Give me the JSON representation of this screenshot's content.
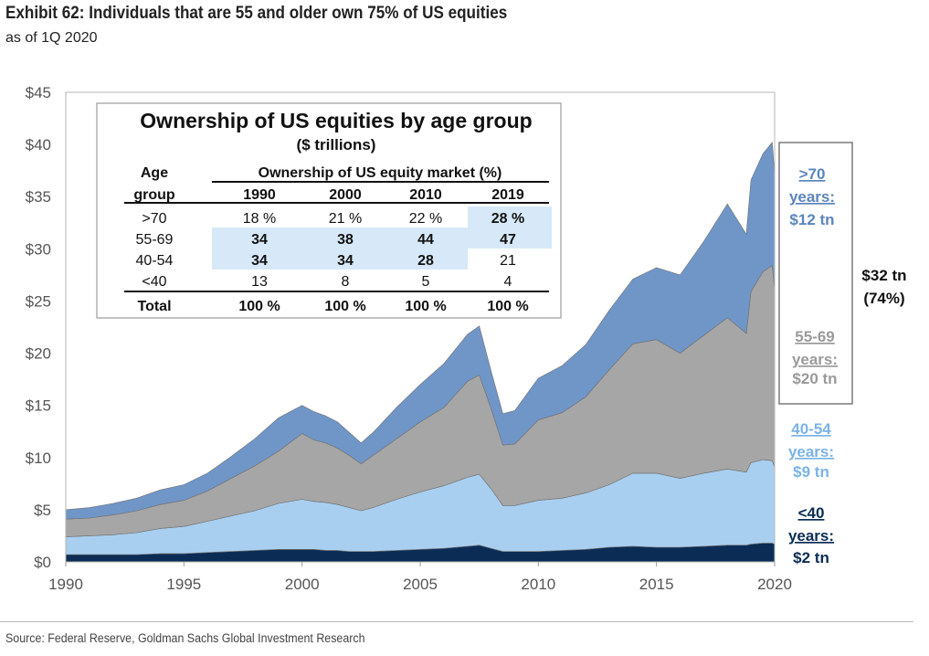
{
  "header": {
    "title": "Exhibit 62: Individuals that are 55 and older own 75% of US equities",
    "subtitle": "as of 1Q 2020"
  },
  "footer": {
    "source": "Source: Federal Reserve, Goldman Sachs Global Investment Research"
  },
  "colors": {
    "lt40": "#0b2d55",
    "a40_54": "#a9cff0",
    "a55_69": "#a6a6a6",
    "gt70": "#7096c8",
    "highlight": "#d7e9f8"
  },
  "chart_data": {
    "type": "area",
    "stacked": true,
    "ylim": [
      0,
      45
    ],
    "xlim": [
      1990,
      2020
    ],
    "y_ticks": [
      "$0",
      "$5",
      "$10",
      "$15",
      "$20",
      "$25",
      "$30",
      "$35",
      "$40",
      "$45"
    ],
    "x_ticks": [
      "1990",
      "1995",
      "2000",
      "2005",
      "2010",
      "2015",
      "2020"
    ],
    "x": [
      1990,
      1991,
      1992,
      1993,
      1994,
      1995,
      1996,
      1997,
      1998,
      1999,
      2000,
      2000.5,
      2001,
      2001.5,
      2002,
      2002.5,
      2003,
      2004,
      2005,
      2006,
      2007,
      2007.5,
      2008,
      2008.5,
      2009,
      2010,
      2011,
      2012,
      2013,
      2014,
      2015,
      2016,
      2017,
      2018,
      2018.8,
      2019,
      2019.5,
      2019.9,
      2020
    ],
    "series": [
      {
        "key": "lt40",
        "values": [
          0.7,
          0.7,
          0.7,
          0.7,
          0.8,
          0.8,
          0.9,
          1.0,
          1.1,
          1.2,
          1.2,
          1.2,
          1.1,
          1.1,
          1.0,
          1.0,
          1.0,
          1.1,
          1.2,
          1.3,
          1.5,
          1.6,
          1.3,
          1.0,
          1.0,
          1.0,
          1.1,
          1.2,
          1.4,
          1.5,
          1.4,
          1.4,
          1.5,
          1.6,
          1.6,
          1.7,
          1.8,
          1.8,
          1.7
        ]
      },
      {
        "key": "a40_54",
        "values": [
          1.7,
          1.8,
          1.9,
          2.1,
          2.4,
          2.6,
          3.0,
          3.4,
          3.8,
          4.4,
          4.8,
          4.6,
          4.6,
          4.4,
          4.2,
          3.9,
          4.2,
          4.9,
          5.5,
          6.0,
          6.6,
          6.8,
          5.7,
          4.4,
          4.4,
          4.9,
          5.0,
          5.4,
          6.0,
          7.0,
          7.1,
          6.6,
          7.0,
          7.3,
          7.0,
          7.8,
          8.0,
          7.9,
          7.4
        ]
      },
      {
        "key": "a55_69",
        "values": [
          1.7,
          1.7,
          1.9,
          2.1,
          2.3,
          2.5,
          2.9,
          3.6,
          4.3,
          5.0,
          6.3,
          5.9,
          5.7,
          5.4,
          5.0,
          4.5,
          5.0,
          5.8,
          6.7,
          7.5,
          9.2,
          9.5,
          7.7,
          5.8,
          5.9,
          7.7,
          8.2,
          9.2,
          11.0,
          12.4,
          12.8,
          12.0,
          13.2,
          14.5,
          13.3,
          16.4,
          18.0,
          18.7,
          17.0
        ]
      },
      {
        "key": "gt70",
        "values": [
          0.9,
          1.0,
          1.1,
          1.2,
          1.4,
          1.5,
          1.7,
          2.1,
          2.6,
          3.2,
          2.7,
          2.7,
          2.6,
          2.5,
          2.2,
          2.0,
          2.2,
          3.0,
          3.6,
          4.2,
          4.5,
          4.7,
          3.6,
          3.0,
          3.2,
          4.0,
          4.5,
          5.0,
          5.7,
          6.2,
          6.9,
          7.5,
          9.0,
          10.9,
          9.5,
          10.7,
          11.3,
          11.8,
          11.1
        ]
      }
    ]
  },
  "inset_table": {
    "title": "Ownership of US equities by age group",
    "subtitle": "($ trillions)",
    "age_header_1": "Age",
    "age_header_2": "group",
    "group_header": "Ownership of US equity market (%)",
    "years": [
      "1990",
      "2000",
      "2010",
      "2019"
    ],
    "rows": [
      {
        "label": ">70",
        "values": [
          "18 %",
          "21 %",
          "22 %",
          "28 %"
        ],
        "bold": [
          false,
          false,
          false,
          true
        ],
        "hl": [
          false,
          false,
          false,
          true
        ]
      },
      {
        "label": "55-69",
        "values": [
          "34",
          "38",
          "44",
          "47"
        ],
        "bold": [
          true,
          true,
          true,
          true
        ],
        "hl": [
          true,
          true,
          true,
          true
        ]
      },
      {
        "label": "40-54",
        "values": [
          "34",
          "34",
          "28",
          "21"
        ],
        "bold": [
          true,
          true,
          true,
          false
        ],
        "hl": [
          true,
          true,
          true,
          false
        ]
      },
      {
        "label": "<40",
        "values": [
          "13",
          "8",
          "5",
          "4"
        ],
        "bold": [
          false,
          false,
          false,
          false
        ],
        "hl": [
          false,
          false,
          false,
          false
        ]
      }
    ],
    "total_label": "Total",
    "total_values": [
      "100 %",
      "100 %",
      "100 %",
      "100 %"
    ]
  },
  "side_labels": {
    "gt70": [
      ">70",
      "years:",
      "$12 tn"
    ],
    "a55_69": [
      "55-69",
      "years:",
      "$20 tn"
    ],
    "a40_54": [
      "40-54",
      "years:",
      "$9 tn"
    ],
    "lt40": [
      "<40",
      "years:",
      "$2 tn"
    ],
    "total": [
      "$32 tn",
      "(74%)"
    ]
  },
  "side_colors": {
    "gt70": "#5b85bd",
    "a55_69": "#9a9a9a",
    "a40_54": "#7ab3e6",
    "lt40": "#0b2d55",
    "total": "#111111"
  }
}
